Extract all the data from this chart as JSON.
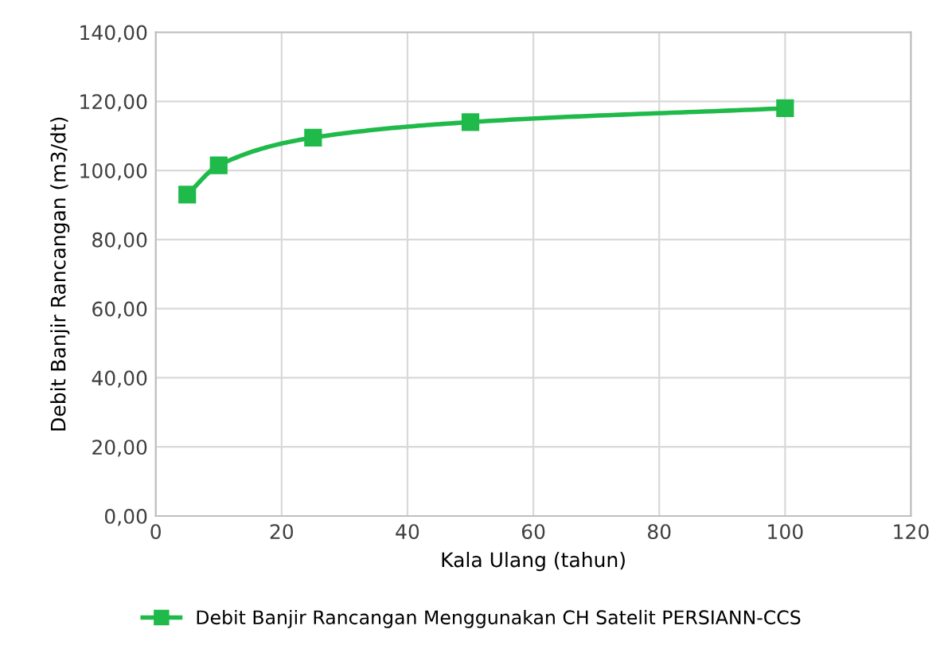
{
  "chart_data": {
    "type": "line",
    "xlabel": "Kala Ulang (tahun)",
    "ylabel": "Debit Banjir Rancangan (m3/dt)",
    "x": [
      5,
      10,
      25,
      50,
      100
    ],
    "series": [
      {
        "name": "Debit Banjir Rancangan Menggunakan CH Satelit PERSIANN-CCS",
        "color": "#1fba4a",
        "values": [
          93.0,
          101.5,
          109.5,
          114.0,
          118.0
        ]
      }
    ],
    "xlim": [
      0,
      120
    ],
    "xticks": [
      0,
      20,
      40,
      60,
      80,
      100,
      120
    ],
    "ylim": [
      0,
      140
    ],
    "yticks": [
      {
        "value": 0,
        "label": "0,00"
      },
      {
        "value": 20,
        "label": "20,00"
      },
      {
        "value": 40,
        "label": "40,00"
      },
      {
        "value": 60,
        "label": "60,00"
      },
      {
        "value": 80,
        "label": "80,00"
      },
      {
        "value": 100,
        "label": "100,00"
      },
      {
        "value": 120,
        "label": "120,00"
      },
      {
        "value": 140,
        "label": "140,00"
      }
    ],
    "grid": true,
    "legend": "bottom",
    "marker": "square",
    "line_style": "solid"
  }
}
